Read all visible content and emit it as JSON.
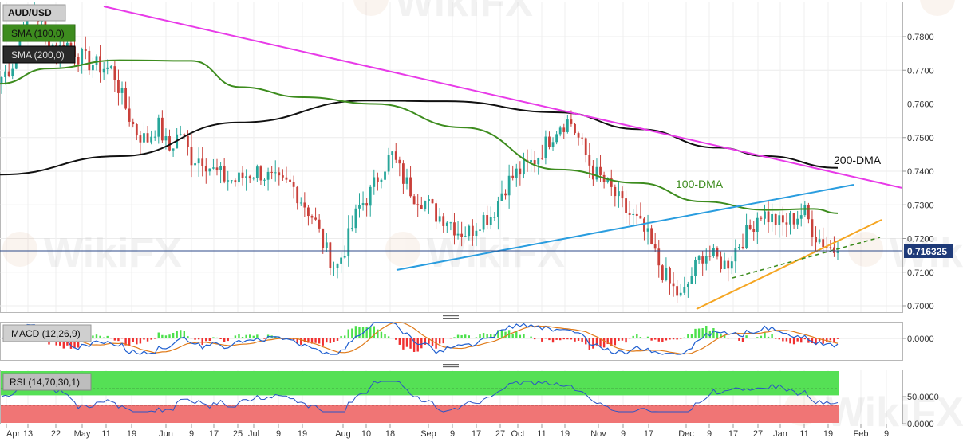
{
  "colors": {
    "bull": "#26a69a",
    "bear": "#c9403a",
    "sma100": "#3d8c1e",
    "sma200": "#111111",
    "resistance_line": "#e83be8",
    "rising_line_blue": "#2a9ddf",
    "support_line": "#f5a623",
    "dashed_support": "#3d8c1e",
    "price_line": "#2c4a8a",
    "macd_line": "#1f5fd0",
    "signal_line": "#e07b1a",
    "hist_pos": "#4ce04c",
    "hist_neg": "#f03030",
    "rsi_line": "#2a53c6",
    "rsi_overbought_zone": "#55e055",
    "rsi_oversold_zone": "#f07575"
  },
  "legend": {
    "symbol": "AUD/USD",
    "sma100": "SMA (100,0)",
    "sma200": "SMA (200,0)",
    "macd": "MACD (12,26,9)",
    "rsi": "RSI (14,70,30,1)"
  },
  "annotations": {
    "dma200": "200-DMA",
    "dma100": "100-DMA",
    "last_price": "0.716325"
  },
  "watermark": "WikiFX",
  "chart_data": [
    {
      "type": "candlestick",
      "ylim": [
        0.695,
        0.79
      ],
      "y_ticks": [
        "0.7800",
        "0.7700",
        "0.7600",
        "0.7500",
        "0.7400",
        "0.7300",
        "0.7200",
        "0.7100",
        "0.7000"
      ],
      "x_ticks": [
        "Apr",
        "13",
        "22",
        "May",
        "11",
        "19",
        "Jun",
        "9",
        "17",
        "25",
        "Jul",
        "9",
        "19",
        "Aug",
        "10",
        "18",
        "Sep",
        "9",
        "17",
        "27",
        "Oct",
        "11",
        "19",
        "Nov",
        "9",
        "17",
        "Dec",
        "9",
        "17",
        "27",
        "Jan",
        "11",
        "19",
        "Feb",
        "9"
      ],
      "close_path": [
        0.768,
        0.772,
        0.784,
        0.788,
        0.78,
        0.776,
        0.778,
        0.774,
        0.772,
        0.771,
        0.77,
        0.76,
        0.752,
        0.749,
        0.754,
        0.746,
        0.752,
        0.744,
        0.744,
        0.74,
        0.738,
        0.737,
        0.739,
        0.74,
        0.738,
        0.736,
        0.736,
        0.731,
        0.726,
        0.717,
        0.711,
        0.719,
        0.729,
        0.733,
        0.74,
        0.745,
        0.738,
        0.733,
        0.731,
        0.727,
        0.726,
        0.722,
        0.722,
        0.726,
        0.727,
        0.735,
        0.739,
        0.741,
        0.744,
        0.749,
        0.754,
        0.755,
        0.748,
        0.74,
        0.737,
        0.733,
        0.728,
        0.725,
        0.72,
        0.712,
        0.706,
        0.702,
        0.71,
        0.716,
        0.714,
        0.712,
        0.718,
        0.722,
        0.728,
        0.726,
        0.724,
        0.726,
        0.728,
        0.721,
        0.718,
        0.716
      ],
      "last_value": 0.716325,
      "series": [
        {
          "name": "200-DMA",
          "start": 0.739,
          "peak": 0.761,
          "end": 0.741
        },
        {
          "name": "100-DMA",
          "start": 0.766,
          "peak": 0.773,
          "end": 0.7275
        }
      ]
    },
    {
      "type": "macd",
      "title": "MACD (12,26,9)",
      "y_ticks": [
        "0.0000"
      ]
    },
    {
      "type": "rsi",
      "title": "RSI (14,70,30,1)",
      "y_ticks": [
        "50.0000",
        "0.0000"
      ],
      "ylim": [
        0,
        100
      ],
      "overbought": 70,
      "oversold": 30
    }
  ]
}
